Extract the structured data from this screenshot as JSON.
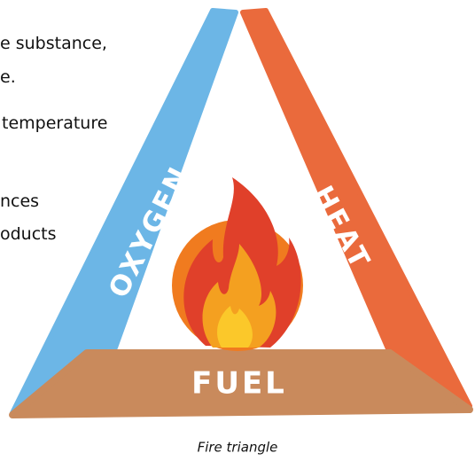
{
  "text": {
    "lines": [
      "e substance,",
      "e.",
      "temperature",
      "nces",
      "oducts"
    ]
  },
  "diagram": {
    "sides": [
      "OXYGEN",
      "HEAT",
      "FUEL"
    ],
    "caption": "Fire triangle"
  }
}
